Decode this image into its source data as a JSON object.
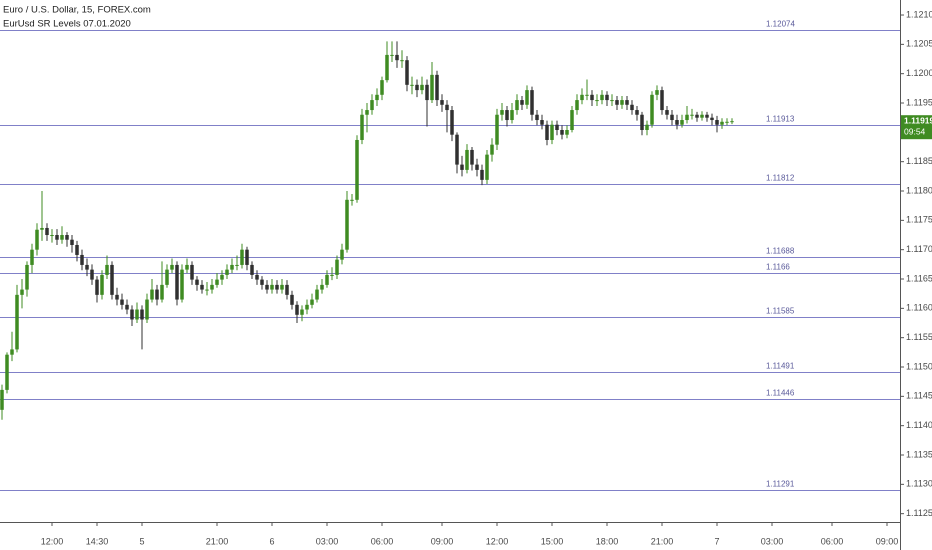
{
  "chart_data": {
    "type": "candlestick",
    "title": "Euro / U.S. Dollar, 15, FOREX.com",
    "subtitle": "EurUsd SR Levels 07.01.2020",
    "up_color": "#3f8b22",
    "down_color": "#303030",
    "level_color": "#8080c8",
    "ylim": [
      1.112358,
      1.121256
    ],
    "yticks": [
      {
        "value": 1.121,
        "label": "1.12100"
      },
      {
        "value": 1.1205,
        "label": "1.12050"
      },
      {
        "value": 1.12,
        "label": "1.12000"
      },
      {
        "value": 1.1195,
        "label": "1.11950"
      },
      {
        "value": 1.119,
        "label": "1.11900"
      },
      {
        "value": 1.1185,
        "label": "1.11850"
      },
      {
        "value": 1.118,
        "label": "1.11800"
      },
      {
        "value": 1.1175,
        "label": "1.11750"
      },
      {
        "value": 1.117,
        "label": "1.11700"
      },
      {
        "value": 1.1165,
        "label": "1.11650"
      },
      {
        "value": 1.116,
        "label": "1.11600"
      },
      {
        "value": 1.1155,
        "label": "1.11550"
      },
      {
        "value": 1.115,
        "label": "1.11500"
      },
      {
        "value": 1.1145,
        "label": "1.11450"
      },
      {
        "value": 1.114,
        "label": "1.11400"
      },
      {
        "value": 1.1135,
        "label": "1.11350"
      },
      {
        "value": 1.113,
        "label": "1.11300"
      },
      {
        "value": 1.1125,
        "label": "1.11250"
      }
    ],
    "xlim": [
      -0.4,
      179.6
    ],
    "xticks": [
      {
        "value": 10,
        "label": "12:00"
      },
      {
        "value": 19,
        "label": "14:30"
      },
      {
        "value": 28,
        "label": "5"
      },
      {
        "value": 43,
        "label": "21:00"
      },
      {
        "value": 54,
        "label": "6"
      },
      {
        "value": 65,
        "label": "03:00"
      },
      {
        "value": 76,
        "label": "06:00"
      },
      {
        "value": 88,
        "label": "09:00"
      },
      {
        "value": 99,
        "label": "12:00"
      },
      {
        "value": 110,
        "label": "15:00"
      },
      {
        "value": 121,
        "label": "18:00"
      },
      {
        "value": 132,
        "label": "21:00"
      },
      {
        "value": 143,
        "label": "7"
      },
      {
        "value": 154,
        "label": "03:00"
      },
      {
        "value": 166,
        "label": "06:00"
      },
      {
        "value": 177,
        "label": "09:00"
      }
    ],
    "levels": [
      1.12074,
      1.11913,
      1.11812,
      1.11688,
      1.1166,
      1.11585,
      1.11491,
      1.11446,
      1.11291
    ],
    "countdown": "09:54",
    "ohlc": [
      [
        1.11427,
        1.1147,
        1.1141,
        1.11461
      ],
      [
        1.11461,
        1.11525,
        1.11455,
        1.11521
      ],
      [
        1.11521,
        1.1156,
        1.1151,
        1.1153
      ],
      [
        1.1153,
        1.1164,
        1.11525,
        1.11623
      ],
      [
        1.11623,
        1.1165,
        1.116,
        1.11632
      ],
      [
        1.11632,
        1.1168,
        1.1162,
        1.11674
      ],
      [
        1.11674,
        1.1171,
        1.1166,
        1.117
      ],
      [
        1.117,
        1.11745,
        1.1169,
        1.11734
      ],
      [
        1.11734,
        1.118,
        1.11715,
        1.11737
      ],
      [
        1.11737,
        1.11745,
        1.11715,
        1.11725
      ],
      [
        1.11725,
        1.11735,
        1.11712,
        1.11725
      ],
      [
        1.11725,
        1.11735,
        1.11708,
        1.11717
      ],
      [
        1.11717,
        1.1174,
        1.1171,
        1.11725
      ],
      [
        1.11725,
        1.1173,
        1.11705,
        1.11717
      ],
      [
        1.11717,
        1.11725,
        1.11695,
        1.11708
      ],
      [
        1.11708,
        1.11715,
        1.1168,
        1.11691
      ],
      [
        1.11691,
        1.117,
        1.11665,
        1.11674
      ],
      [
        1.11674,
        1.11685,
        1.11655,
        1.11666
      ],
      [
        1.11666,
        1.11675,
        1.1164,
        1.11649
      ],
      [
        1.11649,
        1.11655,
        1.1161,
        1.11623
      ],
      [
        1.11623,
        1.11665,
        1.11615,
        1.11657
      ],
      [
        1.11657,
        1.1169,
        1.1165,
        1.11674
      ],
      [
        1.11674,
        1.1168,
        1.11615,
        1.11623
      ],
      [
        1.11623,
        1.11635,
        1.11605,
        1.11615
      ],
      [
        1.11615,
        1.11625,
        1.11598,
        1.11606
      ],
      [
        1.11606,
        1.11615,
        1.1159,
        1.11598
      ],
      [
        1.11598,
        1.11605,
        1.1157,
        1.11581
      ],
      [
        1.11581,
        1.1161,
        1.11575,
        1.11598
      ],
      [
        1.11598,
        1.11605,
        1.1153,
        1.11581
      ],
      [
        1.11581,
        1.11625,
        1.11575,
        1.11615
      ],
      [
        1.11615,
        1.1165,
        1.1161,
        1.11632
      ],
      [
        1.11632,
        1.1164,
        1.11605,
        1.11615
      ],
      [
        1.11615,
        1.1168,
        1.1161,
        1.1164
      ],
      [
        1.1164,
        1.11675,
        1.11635,
        1.11666
      ],
      [
        1.11666,
        1.11685,
        1.1166,
        1.11674
      ],
      [
        1.11674,
        1.1168,
        1.11605,
        1.11615
      ],
      [
        1.11615,
        1.11675,
        1.1161,
        1.11666
      ],
      [
        1.11666,
        1.11685,
        1.1166,
        1.11674
      ],
      [
        1.11674,
        1.1168,
        1.1164,
        1.11649
      ],
      [
        1.11649,
        1.11655,
        1.1163,
        1.1164
      ],
      [
        1.1164,
        1.11648,
        1.11625,
        1.11632
      ],
      [
        1.11632,
        1.11645,
        1.11622,
        1.11632
      ],
      [
        1.11632,
        1.1165,
        1.11625,
        1.1164
      ],
      [
        1.1164,
        1.1166,
        1.11635,
        1.11649
      ],
      [
        1.11649,
        1.11665,
        1.1164,
        1.11657
      ],
      [
        1.11657,
        1.11675,
        1.1165,
        1.11666
      ],
      [
        1.11666,
        1.11685,
        1.1166,
        1.11674
      ],
      [
        1.11674,
        1.1169,
        1.11665,
        1.11674
      ],
      [
        1.11674,
        1.1171,
        1.11668,
        1.117
      ],
      [
        1.117,
        1.11705,
        1.11665,
        1.11674
      ],
      [
        1.11674,
        1.1168,
        1.1165,
        1.11657
      ],
      [
        1.11657,
        1.11665,
        1.1164,
        1.11649
      ],
      [
        1.11649,
        1.11655,
        1.11632,
        1.1164
      ],
      [
        1.1164,
        1.11648,
        1.11625,
        1.11632
      ],
      [
        1.11632,
        1.1165,
        1.11625,
        1.1164
      ],
      [
        1.1164,
        1.11648,
        1.11625,
        1.11632
      ],
      [
        1.11632,
        1.1165,
        1.11625,
        1.1164
      ],
      [
        1.1164,
        1.11648,
        1.11615,
        1.11623
      ],
      [
        1.11623,
        1.1163,
        1.11598,
        1.11606
      ],
      [
        1.11606,
        1.11612,
        1.11575,
        1.11589
      ],
      [
        1.11589,
        1.11605,
        1.11578,
        1.11598
      ],
      [
        1.11598,
        1.11615,
        1.1159,
        1.11606
      ],
      [
        1.11606,
        1.11625,
        1.116,
        1.11615
      ],
      [
        1.11615,
        1.1164,
        1.1161,
        1.11632
      ],
      [
        1.11632,
        1.1165,
        1.11625,
        1.1164
      ],
      [
        1.1164,
        1.11665,
        1.11635,
        1.11657
      ],
      [
        1.11657,
        1.1167,
        1.11648,
        1.11657
      ],
      [
        1.11657,
        1.1169,
        1.1165,
        1.11683
      ],
      [
        1.11683,
        1.1171,
        1.11675,
        1.117
      ],
      [
        1.117,
        1.118,
        1.11695,
        1.11785
      ],
      [
        1.11785,
        1.11795,
        1.11775,
        1.11785
      ],
      [
        1.11785,
        1.11895,
        1.1178,
        1.11887
      ],
      [
        1.11887,
        1.1194,
        1.1188,
        1.1193
      ],
      [
        1.1193,
        1.1195,
        1.119,
        1.11938
      ],
      [
        1.11938,
        1.11965,
        1.1193,
        1.11955
      ],
      [
        1.11955,
        1.11975,
        1.11945,
        1.11964
      ],
      [
        1.11964,
        1.11995,
        1.11955,
        1.11989
      ],
      [
        1.11989,
        1.12055,
        1.11985,
        1.12032
      ],
      [
        1.12032,
        1.12055,
        1.1202,
        1.12032
      ],
      [
        1.12032,
        1.12055,
        1.1201,
        1.12023
      ],
      [
        1.12023,
        1.1204,
        1.1201,
        1.12023
      ],
      [
        1.12023,
        1.1203,
        1.1197,
        1.11981
      ],
      [
        1.11981,
        1.11995,
        1.11965,
        1.11981
      ],
      [
        1.11981,
        1.1199,
        1.1196,
        1.11972
      ],
      [
        1.11972,
        1.11995,
        1.11965,
        1.11981
      ],
      [
        1.11981,
        1.1199,
        1.1191,
        1.11955
      ],
      [
        1.11955,
        1.1202,
        1.1195,
        1.11998
      ],
      [
        1.11998,
        1.12005,
        1.11945,
        1.11955
      ],
      [
        1.11955,
        1.11965,
        1.11935,
        1.11947
      ],
      [
        1.11947,
        1.11955,
        1.119,
        1.11938
      ],
      [
        1.11938,
        1.11945,
        1.11885,
        1.11896
      ],
      [
        1.11896,
        1.119,
        1.1183,
        1.11845
      ],
      [
        1.11845,
        1.1186,
        1.11825,
        1.11836
      ],
      [
        1.11836,
        1.1188,
        1.1183,
        1.1187
      ],
      [
        1.1187,
        1.11875,
        1.11835,
        1.11845
      ],
      [
        1.11845,
        1.11855,
        1.11825,
        1.11836
      ],
      [
        1.11836,
        1.11845,
        1.1181,
        1.11819
      ],
      [
        1.11819,
        1.1187,
        1.11812,
        1.11862
      ],
      [
        1.11862,
        1.1189,
        1.1185,
        1.11879
      ],
      [
        1.11879,
        1.1194,
        1.1187,
        1.1193
      ],
      [
        1.1193,
        1.1195,
        1.1192,
        1.11938
      ],
      [
        1.11938,
        1.11945,
        1.1191,
        1.11921
      ],
      [
        1.11921,
        1.1195,
        1.11915,
        1.11938
      ],
      [
        1.11938,
        1.11965,
        1.1193,
        1.11955
      ],
      [
        1.11955,
        1.11962,
        1.11938,
        1.11947
      ],
      [
        1.11947,
        1.1198,
        1.1194,
        1.11972
      ],
      [
        1.11972,
        1.11978,
        1.1192,
        1.1193
      ],
      [
        1.1193,
        1.11938,
        1.11912,
        1.11921
      ],
      [
        1.11921,
        1.1193,
        1.11905,
        1.11913
      ],
      [
        1.11913,
        1.1192,
        1.11878,
        1.11887
      ],
      [
        1.11887,
        1.1192,
        1.1188,
        1.11913
      ],
      [
        1.11913,
        1.1192,
        1.11895,
        1.11904
      ],
      [
        1.11904,
        1.11912,
        1.11888,
        1.11896
      ],
      [
        1.11896,
        1.11912,
        1.1189,
        1.11904
      ],
      [
        1.11904,
        1.11945,
        1.119,
        1.11938
      ],
      [
        1.11938,
        1.11965,
        1.1193,
        1.11955
      ],
      [
        1.11955,
        1.11975,
        1.11948,
        1.11964
      ],
      [
        1.11964,
        1.1199,
        1.11955,
        1.11964
      ],
      [
        1.11964,
        1.11972,
        1.11945,
        1.11955
      ],
      [
        1.11955,
        1.11965,
        1.11945,
        1.11955
      ],
      [
        1.11955,
        1.11972,
        1.11948,
        1.11964
      ],
      [
        1.11964,
        1.1197,
        1.11945,
        1.11955
      ],
      [
        1.11955,
        1.11965,
        1.11945,
        1.11955
      ],
      [
        1.11955,
        1.11962,
        1.11938,
        1.11947
      ],
      [
        1.11947,
        1.11962,
        1.1194,
        1.11955
      ],
      [
        1.11955,
        1.11962,
        1.11938,
        1.11947
      ],
      [
        1.11947,
        1.11955,
        1.1193,
        1.11938
      ],
      [
        1.11938,
        1.11945,
        1.1192,
        1.1193
      ],
      [
        1.1193,
        1.11935,
        1.11895,
        1.11904
      ],
      [
        1.11904,
        1.1192,
        1.11895,
        1.11913
      ],
      [
        1.11913,
        1.1197,
        1.11908,
        1.11964
      ],
      [
        1.11964,
        1.1198,
        1.11955,
        1.11972
      ],
      [
        1.11972,
        1.11978,
        1.1193,
        1.11938
      ],
      [
        1.11938,
        1.11945,
        1.11922,
        1.1193
      ],
      [
        1.1193,
        1.11938,
        1.11912,
        1.11921
      ],
      [
        1.11921,
        1.1193,
        1.11905,
        1.11913
      ],
      [
        1.11913,
        1.1193,
        1.11908,
        1.11921
      ],
      [
        1.11921,
        1.11945,
        1.11915,
        1.1193
      ],
      [
        1.1193,
        1.1194,
        1.11922,
        1.1193
      ],
      [
        1.1193,
        1.11935,
        1.11918,
        1.11925
      ],
      [
        1.11925,
        1.11936,
        1.1192,
        1.1193
      ],
      [
        1.1193,
        1.11935,
        1.11918,
        1.11925
      ],
      [
        1.11925,
        1.11932,
        1.11912,
        1.11921
      ],
      [
        1.11921,
        1.11928,
        1.119,
        1.11913
      ],
      [
        1.11913,
        1.11924,
        1.11906,
        1.11918
      ],
      [
        1.11918,
        1.11924,
        1.11912,
        1.11918
      ],
      [
        1.11918,
        1.11924,
        1.11914,
        1.11919
      ]
    ]
  }
}
